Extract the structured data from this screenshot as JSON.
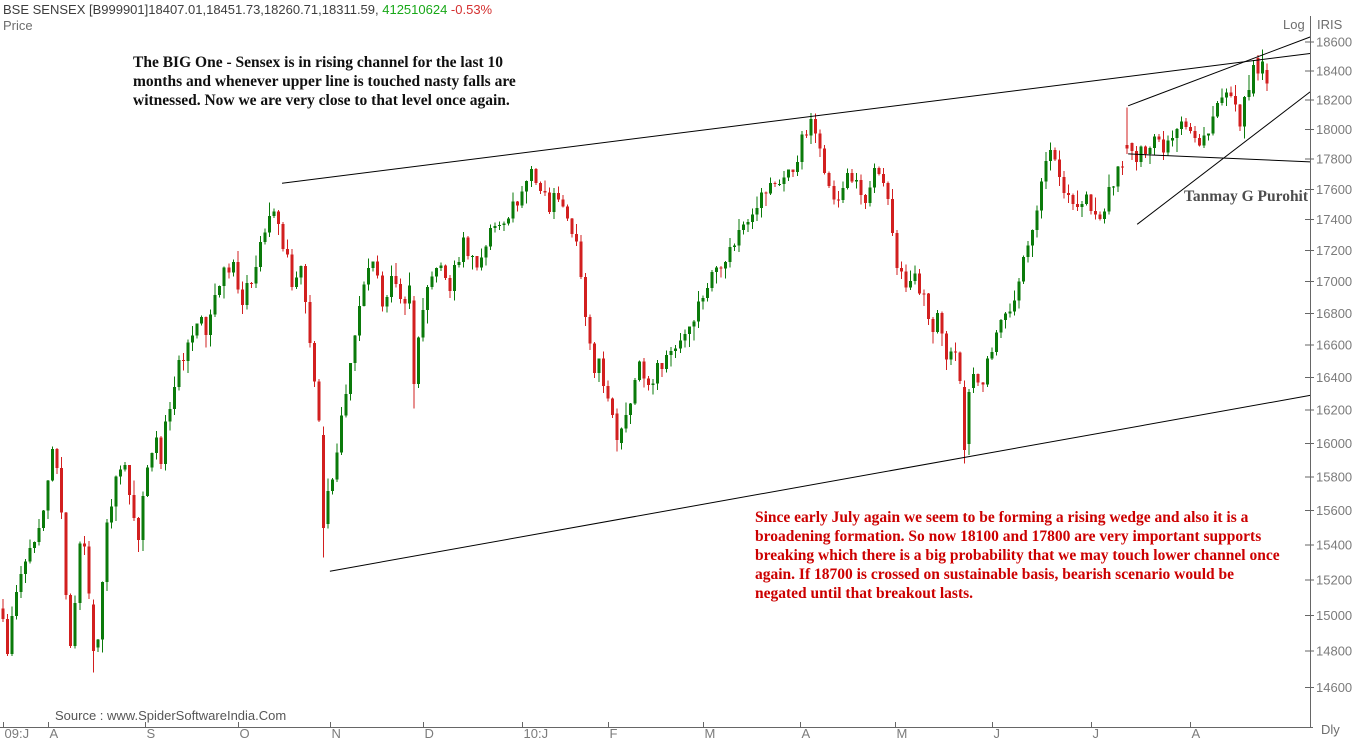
{
  "header": {
    "quote_line": "BSE SENSEX [B999901]18407.01,18451.73,18260.71,18311.59, ",
    "volume": "412510624",
    "change_pct": " -0.53%",
    "price_label": "Price"
  },
  "axis": {
    "scale_label": "Log",
    "platform_label": "IRIS",
    "periodicity_label": "Dly",
    "price_ticks": [
      18600,
      18400,
      18200,
      18000,
      17800,
      17600,
      17400,
      17200,
      17000,
      16800,
      16600,
      16400,
      16200,
      16000,
      15800,
      15600,
      15400,
      15200,
      15000,
      14800,
      14600
    ],
    "month_labels": [
      {
        "t": "09:J",
        "d": 0
      },
      {
        "t": "A",
        "d": 10
      },
      {
        "t": "S",
        "d": 31.5
      },
      {
        "t": "O",
        "d": 52
      },
      {
        "t": "N",
        "d": 72.5
      },
      {
        "t": "D",
        "d": 93
      },
      {
        "t": "10:J",
        "d": 115
      },
      {
        "t": "F",
        "d": 134
      },
      {
        "t": "M",
        "d": 155
      },
      {
        "t": "A",
        "d": 176.5
      },
      {
        "t": "M",
        "d": 197.5
      },
      {
        "t": "J",
        "d": 219
      },
      {
        "t": "J",
        "d": 241
      },
      {
        "t": "A",
        "d": 263
      }
    ]
  },
  "annotations": {
    "channel_note_lines": [
      "The BIG One - Sensex is in rising channel for the last 10",
      "months and whenever upper line is touched nasty falls are",
      "witnessed. Now we are very close to that level once again."
    ],
    "wedge_note_lines": [
      "Since early July again we seem to be forming a rising wedge and also it is a",
      "broadening formation. So now 18100 and 17800 are very important supports",
      "breaking which there is a big probability that we may touch lower channel once",
      "again. If 18700 is crossed on sustainable basis, bearish scenario would be",
      "negated until that breakout lasts."
    ],
    "signature": "Tanmay G Purohit",
    "source": "Source : www.SpiderSoftwareIndia.Com"
  },
  "colors": {
    "up_candle": "#0a7a0a",
    "down_candle": "#d21f1f",
    "volume_text": "#18a818",
    "change_text": "#d43030",
    "red_note": "#cc0000",
    "axis_line": "#666666",
    "axis_text": "#7b7b7b",
    "trendline": "#000000"
  },
  "chart_data": {
    "type": "candlestick",
    "title": "BSE SENSEX daily candles, July 2009 - August 2010, log price scale",
    "ylabel": "Price",
    "y_range": [
      14500,
      18700
    ],
    "scale": "log",
    "days_shown": 281,
    "last_candle": {
      "open": 18407.01,
      "high": 18451.73,
      "low": 18260.71,
      "close": 18311.59
    },
    "price_path": [
      [
        0,
        14950
      ],
      [
        1,
        14820
      ],
      [
        3,
        15120
      ],
      [
        5,
        15300
      ],
      [
        7,
        15380
      ],
      [
        9,
        15560
      ],
      [
        11,
        15950
      ],
      [
        12,
        15880
      ],
      [
        13,
        15550
      ],
      [
        14,
        15150
      ],
      [
        15,
        14800
      ],
      [
        16,
        15100
      ],
      [
        17,
        15450
      ],
      [
        18,
        15350
      ],
      [
        19,
        15150
      ],
      [
        20,
        14800
      ],
      [
        21,
        14900
      ],
      [
        23,
        15500
      ],
      [
        25,
        15800
      ],
      [
        27,
        15870
      ],
      [
        29,
        15600
      ],
      [
        30,
        15450
      ],
      [
        32,
        15900
      ],
      [
        34,
        16010
      ],
      [
        35,
        15920
      ],
      [
        37,
        16250
      ],
      [
        39,
        16470
      ],
      [
        42,
        16680
      ],
      [
        44,
        16780
      ],
      [
        45,
        16640
      ],
      [
        47,
        16920
      ],
      [
        49,
        17080
      ],
      [
        51,
        17130
      ],
      [
        53,
        16870
      ],
      [
        55,
        17020
      ],
      [
        57,
        17260
      ],
      [
        60,
        17450
      ],
      [
        61,
        17350
      ],
      [
        63,
        17140
      ],
      [
        64,
        16950
      ],
      [
        66,
        17060
      ],
      [
        68,
        16650
      ],
      [
        70,
        16100
      ],
      [
        71,
        15500
      ],
      [
        72,
        15680
      ],
      [
        74,
        15980
      ],
      [
        76,
        16320
      ],
      [
        78,
        16620
      ],
      [
        80,
        17000
      ],
      [
        82,
        17090
      ],
      [
        84,
        16890
      ],
      [
        86,
        17010
      ],
      [
        88,
        16870
      ],
      [
        90,
        16950
      ],
      [
        91,
        16360
      ],
      [
        92,
        16670
      ],
      [
        94,
        16920
      ],
      [
        96,
        17120
      ],
      [
        99,
        16970
      ],
      [
        102,
        17260
      ],
      [
        105,
        17100
      ],
      [
        108,
        17320
      ],
      [
        111,
        17420
      ],
      [
        113,
        17480
      ],
      [
        115,
        17580
      ],
      [
        117,
        17730
      ],
      [
        119,
        17600
      ],
      [
        121,
        17500
      ],
      [
        123,
        17580
      ],
      [
        125,
        17420
      ],
      [
        127,
        17220
      ],
      [
        129,
        16780
      ],
      [
        131,
        16380
      ],
      [
        132,
        16520
      ],
      [
        134,
        16240
      ],
      [
        136,
        16020
      ],
      [
        138,
        16200
      ],
      [
        141,
        16470
      ],
      [
        143,
        16350
      ],
      [
        146,
        16500
      ],
      [
        149,
        16600
      ],
      [
        152,
        16730
      ],
      [
        155,
        16920
      ],
      [
        158,
        17100
      ],
      [
        161,
        17200
      ],
      [
        164,
        17380
      ],
      [
        167,
        17520
      ],
      [
        170,
        17620
      ],
      [
        173,
        17680
      ],
      [
        175,
        17730
      ],
      [
        177,
        17920
      ],
      [
        179,
        18030
      ],
      [
        181,
        17920
      ],
      [
        183,
        17600
      ],
      [
        185,
        17500
      ],
      [
        187,
        17720
      ],
      [
        189,
        17620
      ],
      [
        191,
        17500
      ],
      [
        193,
        17710
      ],
      [
        195,
        17600
      ],
      [
        196,
        17530
      ],
      [
        198,
        17120
      ],
      [
        200,
        16960
      ],
      [
        202,
        17030
      ],
      [
        204,
        16880
      ],
      [
        206,
        16680
      ],
      [
        207,
        16780
      ],
      [
        209,
        16480
      ],
      [
        211,
        16580
      ],
      [
        212,
        16420
      ],
      [
        213,
        15960
      ],
      [
        214,
        16310
      ],
      [
        215,
        16460
      ],
      [
        216,
        16400
      ],
      [
        217,
        16360
      ],
      [
        218,
        16510
      ],
      [
        219,
        16580
      ],
      [
        221,
        16720
      ],
      [
        223,
        16850
      ],
      [
        225,
        17000
      ],
      [
        227,
        17240
      ],
      [
        229,
        17500
      ],
      [
        231,
        17750
      ],
      [
        232,
        17880
      ],
      [
        233,
        17800
      ],
      [
        234,
        17680
      ],
      [
        236,
        17570
      ],
      [
        238,
        17470
      ],
      [
        240,
        17540
      ],
      [
        241,
        17450
      ],
      [
        243,
        17400
      ],
      [
        245,
        17570
      ],
      [
        247,
        17720
      ],
      [
        249,
        17870
      ],
      [
        251,
        17790
      ],
      [
        253,
        17880
      ],
      [
        255,
        17960
      ],
      [
        257,
        17890
      ],
      [
        259,
        17980
      ],
      [
        261,
        18090
      ],
      [
        263,
        17990
      ],
      [
        265,
        17870
      ],
      [
        267,
        18020
      ],
      [
        269,
        18160
      ],
      [
        271,
        18240
      ],
      [
        273,
        18120
      ],
      [
        274,
        18070
      ],
      [
        276,
        18260
      ],
      [
        277,
        18440
      ],
      [
        278,
        18400
      ],
      [
        279,
        18420
      ],
      [
        280,
        18311.59
      ]
    ],
    "overrides": {
      "20": [
        15060,
        15090,
        14680,
        14800
      ],
      "71": [
        16050,
        16100,
        15330,
        15500
      ],
      "91": [
        16880,
        16910,
        16210,
        16360
      ],
      "136": [
        16180,
        16210,
        15950,
        16020
      ],
      "213": [
        16340,
        16380,
        15880,
        15960
      ],
      "214": [
        15995,
        16330,
        15930,
        16310
      ],
      "249": [
        17895,
        18150,
        17835,
        17870
      ],
      "277": [
        18245,
        18475,
        18225,
        18440
      ],
      "280": [
        18407.01,
        18451.73,
        18260.71,
        18311.59
      ]
    },
    "trendlines": [
      {
        "name": "channel-upper",
        "from": [
          61.8,
          17640
        ],
        "to": [
          289.5,
          18520
        ]
      },
      {
        "name": "channel-lower",
        "from": [
          72.4,
          15250
        ],
        "to": [
          289.5,
          16290
        ]
      },
      {
        "name": "wedge-upper",
        "from": [
          249.2,
          18160
        ],
        "to": [
          289.5,
          18635
        ]
      },
      {
        "name": "wedge-support",
        "from": [
          251.2,
          17370
        ],
        "to": [
          289.5,
          18255
        ]
      },
      {
        "name": "support-17800",
        "from": [
          249.2,
          17835
        ],
        "to": [
          289.5,
          17782
        ]
      }
    ]
  }
}
